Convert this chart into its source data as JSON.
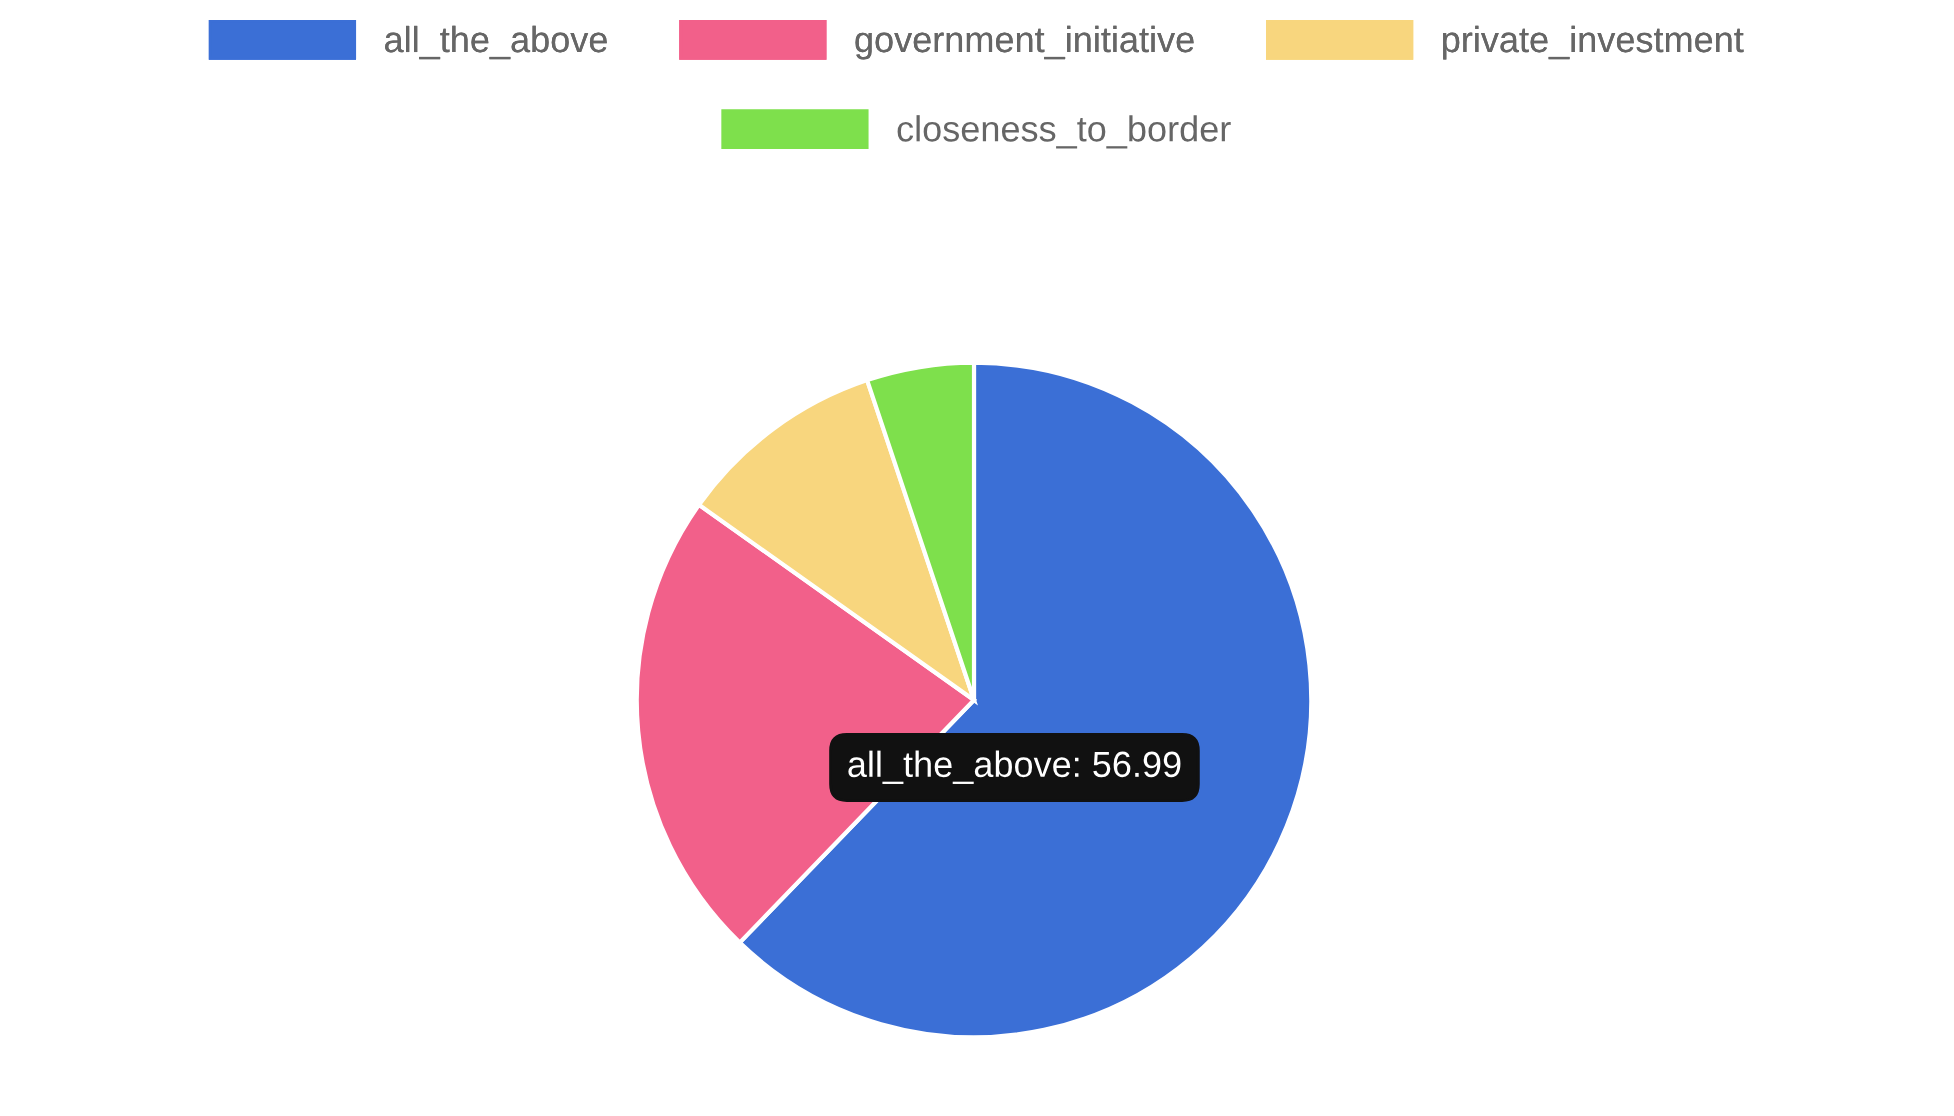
{
  "chart_data": {
    "type": "pie",
    "categories": [
      "all_the_above",
      "government_initiative",
      "private_investment",
      "closeness_to_border"
    ],
    "values": [
      56.99,
      20.7,
      9.2,
      4.7
    ],
    "colors": [
      "#3b6fd6",
      "#f2608a",
      "#f8d67e",
      "#7ee04c"
    ],
    "value_labels": [
      "all_the_above: 56.99",
      null,
      null,
      null
    ],
    "legend": "top"
  }
}
